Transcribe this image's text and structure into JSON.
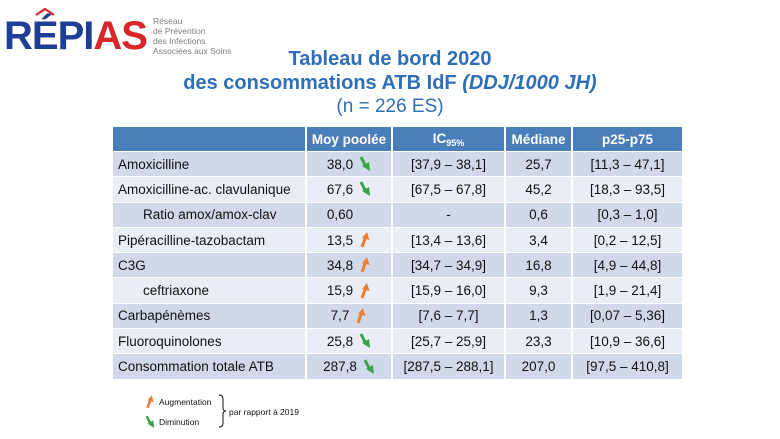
{
  "logo": {
    "word_blue_1": "R",
    "word_blue_2": "ÉPI",
    "word_red": "AS",
    "subtitle_lines": [
      "Réseau",
      "de Prévention",
      "des Infections",
      "Associées aux Soins"
    ]
  },
  "title": {
    "line1": "Tableau de bord 2020",
    "line2_prefix": "des consommations ATB IdF ",
    "line2_italic": "(DDJ/1000 JH)",
    "line3": "(n = 226 ES)"
  },
  "table": {
    "headers": {
      "name": "",
      "moy": "Moy poolée",
      "ic": "IC",
      "ic_sub": "95%",
      "mediane": "Médiane",
      "p25p75": "p25-p75"
    },
    "rows": [
      {
        "name": "Amoxicilline",
        "indent": false,
        "moy": "38,0",
        "trend": "down",
        "ic": "[37,9 – 38,1]",
        "mediane": "25,7",
        "p": "[11,3 – 47,1]"
      },
      {
        "name": "Amoxicilline-ac. clavulanique",
        "indent": false,
        "moy": "67,6",
        "trend": "down",
        "ic": "[67,5 – 67,8]",
        "mediane": "45,2",
        "p": "[18,3 – 93,5]"
      },
      {
        "name": "Ratio amox/amox-clav",
        "indent": true,
        "moy": "0,60",
        "trend": "none",
        "ic": "-",
        "mediane": "0,6",
        "p": "[0,3 – 1,0]"
      },
      {
        "name": "Pipéracilline-tazobactam",
        "indent": false,
        "moy": "13,5",
        "trend": "up",
        "ic": "[13,4 – 13,6]",
        "mediane": "3,4",
        "p": "[0,2 – 12,5]"
      },
      {
        "name": "C3G",
        "indent": false,
        "moy": "34,8",
        "trend": "up",
        "ic": "[34,7 – 34,9]",
        "mediane": "16,8",
        "p": "[4,9 – 44,8]"
      },
      {
        "name": "ceftriaxone",
        "indent": true,
        "moy": "15,9",
        "trend": "up",
        "ic": "[15,9 – 16,0]",
        "mediane": "9,3",
        "p": "[1,9 – 21,4]"
      },
      {
        "name": "Carbapénèmes",
        "indent": false,
        "moy": "7,7",
        "trend": "up",
        "ic": "[7,6 – 7,7]",
        "mediane": "1,3",
        "p": "[0,07 – 5,36]"
      },
      {
        "name": "Fluoroquinolones",
        "indent": false,
        "moy": "25,8",
        "trend": "down",
        "ic": "[25,7 – 25,9]",
        "mediane": "23,3",
        "p": "[10,9 – 36,6]"
      },
      {
        "name": "Consommation totale ATB",
        "indent": false,
        "moy": "287,8",
        "trend": "down",
        "ic": "[287,5 – 288,1]",
        "mediane": "207,0",
        "p": "[97,5 – 410,8]"
      }
    ]
  },
  "legend": {
    "up_label": "Augmentation",
    "down_label": "Diminution",
    "note": "par rapport à 2019"
  },
  "colors": {
    "title_blue": "#2e6fb7",
    "header_blue": "#4a7ebb",
    "row_dark": "#d0d9ea",
    "row_light": "#e9edf5",
    "arrow_up": "#ed7d31",
    "arrow_down": "#3aa34a",
    "logo_blue": "#1f3e96",
    "logo_red": "#d9262b"
  },
  "icons": {
    "up": "arrow-up-right-icon",
    "down": "arrow-down-right-icon"
  }
}
